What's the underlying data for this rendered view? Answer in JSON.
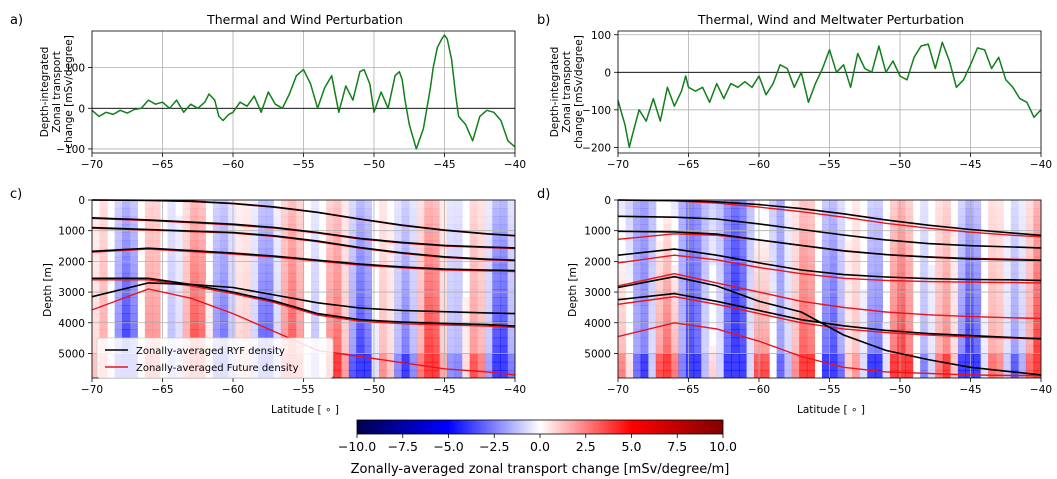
{
  "panels": {
    "a": {
      "label": "a)",
      "title": "Thermal and Wind Perturbation"
    },
    "b": {
      "label": "b)",
      "title": "Thermal, Wind and Meltwater Perturbation"
    },
    "c": {
      "label": "c)"
    },
    "d": {
      "label": "d)"
    }
  },
  "legend": {
    "ryf": "Zonally-averaged RYF density",
    "future": "Zonally-averaged Future density"
  },
  "colorbar": {
    "label": "Zonally-averaged zonal transport change [mSv/degree/m]",
    "ticks": [
      "−10.0",
      "−7.5",
      "−5.0",
      "−2.5",
      "0.0",
      "2.5",
      "5.0",
      "7.5",
      "10.0"
    ],
    "range": [
      -10,
      10
    ],
    "colormap": "seismic"
  },
  "colors": {
    "line": "#117f1a",
    "ryf": "#000000",
    "future": "#e8141c"
  },
  "chart_data": [
    {
      "type": "line",
      "panel": "a",
      "title": "Thermal and Wind Perturbation",
      "ylabel": "Depth-integrated Zonal transport change [mSv/degree]",
      "ylabel_lines": [
        "Depth-integrated",
        "Zonal transport",
        "change [mSv/degree]"
      ],
      "xlim": [
        -70,
        -40
      ],
      "ylim": [
        -110,
        190
      ],
      "xticks": [
        "−70",
        "−65",
        "−60",
        "−55",
        "−50",
        "−45",
        "−40"
      ],
      "yticks": [
        "−100",
        "0",
        "100"
      ],
      "ytick_values": [
        -100,
        0,
        100
      ],
      "grid": true,
      "zero_line": true,
      "series": [
        {
          "x": [
            -70,
            -69.5,
            -69,
            -68.5,
            -68,
            -67.5,
            -67,
            -66.5,
            -66,
            -65.5,
            -65,
            -64.5,
            -64,
            -63.5,
            -63,
            -62.5,
            -62,
            -61.7,
            -61.3,
            -61,
            -60.7,
            -60.3,
            -60,
            -59.5,
            -59,
            -58.5,
            -58,
            -57.5,
            -57,
            -56.5,
            -56,
            -55.5,
            -55,
            -54.5,
            -54,
            -53.5,
            -53,
            -52.5,
            -52,
            -51.5,
            -51,
            -50.7,
            -50.3,
            -50,
            -49.5,
            -49,
            -48.5,
            -48.2,
            -48,
            -47.8,
            -47.5,
            -47,
            -46.5,
            -46,
            -45.8,
            -45.5,
            -45.2,
            -45,
            -44.8,
            -44.5,
            -44.2,
            -44,
            -43.5,
            -43,
            -42.5,
            -42,
            -41.5,
            -41,
            -40.5,
            -40
          ],
          "y": [
            -5,
            -20,
            -10,
            -15,
            -5,
            -12,
            -3,
            0,
            20,
            10,
            15,
            0,
            20,
            -10,
            10,
            0,
            15,
            35,
            20,
            -20,
            -30,
            -15,
            -10,
            15,
            5,
            30,
            -10,
            40,
            10,
            0,
            35,
            80,
            95,
            60,
            0,
            50,
            80,
            -10,
            55,
            20,
            90,
            95,
            60,
            -10,
            40,
            0,
            80,
            90,
            70,
            20,
            -40,
            -100,
            -50,
            50,
            100,
            150,
            170,
            180,
            170,
            120,
            30,
            -20,
            -40,
            -80,
            -20,
            -5,
            -10,
            -30,
            -80,
            -95
          ]
        }
      ]
    },
    {
      "type": "line",
      "panel": "b",
      "title": "Thermal, Wind and Meltwater Perturbation",
      "ylabel": "Depth-integrated Zonal transport change [mSv/degree]",
      "ylabel_lines": [
        "Depth-integrated",
        "Zonal transport",
        "change [mSv/degree]"
      ],
      "xlim": [
        -70,
        -40
      ],
      "ylim": [
        -215,
        110
      ],
      "xticks": [
        "−70",
        "−65",
        "−60",
        "−55",
        "−50",
        "−45",
        "−40"
      ],
      "yticks": [
        "−200",
        "−100",
        "0",
        "100"
      ],
      "ytick_values": [
        -200,
        -100,
        0,
        100
      ],
      "grid": true,
      "zero_line": true,
      "series": [
        {
          "x": [
            -70,
            -69.5,
            -69.2,
            -69,
            -68.5,
            -68,
            -67.5,
            -67,
            -66.5,
            -66,
            -65.5,
            -65.2,
            -65,
            -64.5,
            -64,
            -63.5,
            -63,
            -62.5,
            -62,
            -61.5,
            -61,
            -60.5,
            -60,
            -59.5,
            -59,
            -58.5,
            -58,
            -57.5,
            -57,
            -56.5,
            -56,
            -55.5,
            -55,
            -54.5,
            -54,
            -53.5,
            -53,
            -52.5,
            -52,
            -51.5,
            -51,
            -50.5,
            -50,
            -49.5,
            -49,
            -48.5,
            -48,
            -47.5,
            -47,
            -46.5,
            -46,
            -45.5,
            -45,
            -44.5,
            -44,
            -43.5,
            -43,
            -42.5,
            -42,
            -41.5,
            -41,
            -40.5,
            -40
          ],
          "y": [
            -75,
            -140,
            -200,
            -170,
            -100,
            -130,
            -70,
            -130,
            -40,
            -90,
            -50,
            -10,
            -40,
            -50,
            -40,
            -80,
            -30,
            -70,
            -30,
            -40,
            -25,
            -40,
            -10,
            -60,
            -30,
            20,
            10,
            -40,
            0,
            -80,
            -30,
            10,
            60,
            0,
            20,
            -40,
            50,
            10,
            0,
            70,
            0,
            30,
            -10,
            -20,
            40,
            70,
            75,
            10,
            80,
            30,
            -40,
            -20,
            20,
            65,
            60,
            10,
            40,
            -20,
            -40,
            -70,
            -80,
            -120,
            -100
          ]
        }
      ]
    },
    {
      "type": "heatmap",
      "panel": "c",
      "xlabel": "Latitude [$^\\circ$]",
      "xlabel_text": "Latitude [ ∘ ]",
      "ylabel": "Depth [m]",
      "xlim": [
        -70,
        -40
      ],
      "ylim": [
        5800,
        0
      ],
      "xticks": [
        "−70",
        "−65",
        "−60",
        "−55",
        "−50",
        "−45",
        "−40"
      ],
      "yticks": [
        "0",
        "1000",
        "2000",
        "3000",
        "4000",
        "5000"
      ],
      "ytick_values": [
        0,
        1000,
        2000,
        3000,
        4000,
        5000
      ],
      "grid": true,
      "legend_position": "lower-left",
      "contour_x": [
        -70,
        -66,
        -63,
        -60,
        -57,
        -54,
        -51,
        -48,
        -45,
        -42,
        -40
      ],
      "ryf_contours": [
        [
          0,
          10,
          40,
          110,
          230,
          400,
          620,
          820,
          980,
          1100,
          1160
        ],
        [
          580,
          650,
          720,
          790,
          900,
          1060,
          1250,
          1380,
          1480,
          1530,
          1560
        ],
        [
          900,
          960,
          1010,
          1060,
          1170,
          1340,
          1550,
          1720,
          1850,
          1930,
          1960
        ],
        [
          1670,
          1570,
          1650,
          1730,
          1830,
          1960,
          2090,
          2180,
          2250,
          2280,
          2300
        ],
        [
          3150,
          2700,
          2750,
          2850,
          3100,
          3350,
          3520,
          3600,
          3640,
          3680,
          3700
        ],
        [
          2550,
          2550,
          2750,
          3000,
          3300,
          3700,
          3900,
          3980,
          4020,
          4060,
          4110
        ]
      ],
      "future_contours": [
        [
          0,
          15,
          50,
          120,
          240,
          410,
          630,
          830,
          990,
          1110,
          1170
        ],
        [
          600,
          670,
          740,
          810,
          920,
          1080,
          1270,
          1400,
          1500,
          1550,
          1580
        ],
        [
          920,
          980,
          1030,
          1080,
          1190,
          1360,
          1570,
          1740,
          1870,
          1950,
          1980
        ],
        [
          1700,
          1600,
          1680,
          1760,
          1860,
          1990,
          2120,
          2210,
          2280,
          2310,
          2330
        ],
        [
          3580,
          2900,
          3200,
          3700,
          4300,
          4900,
          5100,
          5300,
          5500,
          5600,
          5700
        ],
        [
          2600,
          2600,
          2800,
          3050,
          3350,
          3750,
          3950,
          4030,
          4070,
          4110,
          4150
        ]
      ]
    },
    {
      "type": "heatmap",
      "panel": "d",
      "xlabel": "Latitude [$^\\circ$]",
      "xlabel_text": "Latitude [ ∘ ]",
      "ylabel": "Depth [m]",
      "xlim": [
        -70,
        -40
      ],
      "ylim": [
        5800,
        0
      ],
      "xticks": [
        "−70",
        "−65",
        "−60",
        "−55",
        "−50",
        "−45",
        "−40"
      ],
      "yticks": [
        "0",
        "1000",
        "2000",
        "3000",
        "4000",
        "5000"
      ],
      "ytick_values": [
        0,
        1000,
        2000,
        3000,
        4000,
        5000
      ],
      "grid": true,
      "contour_x": [
        -70,
        -66,
        -63,
        -60,
        -57,
        -54,
        -51,
        -48,
        -45,
        -42,
        -40
      ],
      "ryf_contours": [
        [
          0,
          15,
          60,
          150,
          280,
          450,
          650,
          820,
          960,
          1080,
          1150
        ],
        [
          530,
          560,
          620,
          780,
          960,
          1140,
          1300,
          1420,
          1490,
          1530,
          1560
        ],
        [
          1020,
          1040,
          1110,
          1300,
          1480,
          1660,
          1780,
          1860,
          1920,
          1950,
          1970
        ],
        [
          1800,
          1600,
          1800,
          2050,
          2280,
          2430,
          2510,
          2560,
          2590,
          2600,
          2620
        ],
        [
          2850,
          2500,
          2800,
          3300,
          3650,
          4400,
          4900,
          5200,
          5450,
          5600,
          5700
        ],
        [
          3250,
          3050,
          3300,
          3600,
          3900,
          4100,
          4250,
          4350,
          4420,
          4480,
          4520
        ]
      ],
      "future_contours": [
        [
          0,
          30,
          100,
          230,
          380,
          560,
          760,
          920,
          1050,
          1150,
          1200
        ],
        [
          1280,
          1100,
          1150,
          1300,
          1480,
          1650,
          1780,
          1850,
          1900,
          1930,
          1950
        ],
        [
          2050,
          1800,
          1950,
          2200,
          2400,
          2550,
          2620,
          2660,
          2680,
          2690,
          2700
        ],
        [
          2800,
          2400,
          2700,
          3000,
          3300,
          3500,
          3650,
          3740,
          3800,
          3840,
          3860
        ],
        [
          4450,
          4000,
          4200,
          4600,
          5100,
          5450,
          5600,
          5650,
          5700,
          5720,
          5720
        ],
        [
          3400,
          3150,
          3400,
          3700,
          4000,
          4200,
          4320,
          4400,
          4460,
          4500,
          4540
        ]
      ]
    }
  ]
}
